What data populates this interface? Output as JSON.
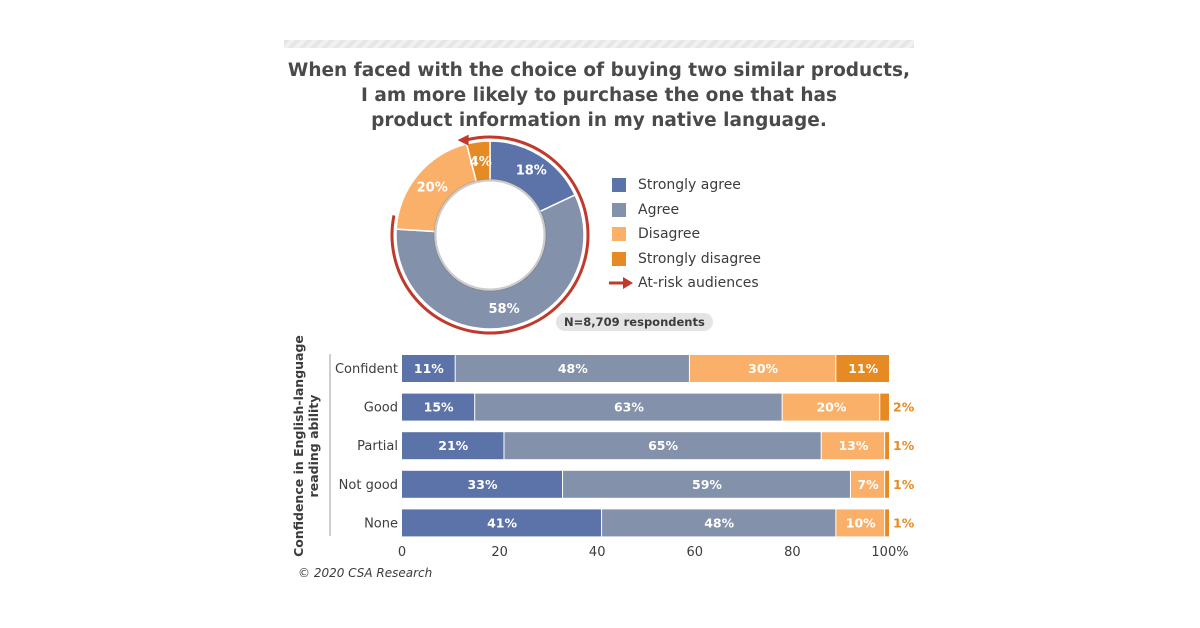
{
  "title_lines": [
    "When faced with the choice of buying two similar products,",
    "I am more likely to purchase the one that has",
    "product information in my native language."
  ],
  "colors": {
    "strongly_agree": "#5b73a8",
    "agree": "#8391ab",
    "disagree": "#fbb06a",
    "strongly_disagree": "#e68b23",
    "at_risk": "#c0392b"
  },
  "legend": {
    "items": [
      {
        "label": "Strongly agree",
        "color": "#5b73a8"
      },
      {
        "label": "Agree",
        "color": "#8391ab"
      },
      {
        "label": "Disagree",
        "color": "#fbb06a"
      },
      {
        "label": "Strongly disagree",
        "color": "#e68b23"
      }
    ],
    "at_risk_label": "At-risk audiences",
    "at_risk_icon": "red-arrow-icon"
  },
  "respondents": "N=8,709 respondents",
  "footer": "© 2020 CSA Research",
  "chart_data": [
    {
      "type": "pie",
      "title": "When faced with the choice of buying two similar products, I am more likely to purchase the one that has product information in my native language.",
      "categories": [
        "Strongly agree",
        "Agree",
        "Disagree",
        "Strongly disagree"
      ],
      "values": [
        18,
        58,
        20,
        4
      ],
      "value_labels": [
        "18%",
        "58%",
        "20%",
        "4%"
      ],
      "legend_position": "right"
    },
    {
      "type": "bar",
      "orientation": "horizontal",
      "stacked": true,
      "categories": [
        "Confident",
        "Good",
        "Partial",
        "Not good",
        "None"
      ],
      "series": [
        {
          "name": "Strongly agree",
          "values": [
            11,
            15,
            21,
            33,
            41
          ]
        },
        {
          "name": "Agree",
          "values": [
            48,
            63,
            65,
            59,
            48
          ]
        },
        {
          "name": "Disagree",
          "values": [
            30,
            20,
            13,
            7,
            10
          ]
        },
        {
          "name": "Strongly disagree",
          "values": [
            11,
            2,
            1,
            1,
            1
          ]
        }
      ],
      "ylabel": "Confidence in English-language reading ability",
      "xlim": [
        0,
        100
      ],
      "xticks": [
        "0",
        "20",
        "40",
        "60",
        "80",
        "100%"
      ],
      "grid": false
    }
  ]
}
